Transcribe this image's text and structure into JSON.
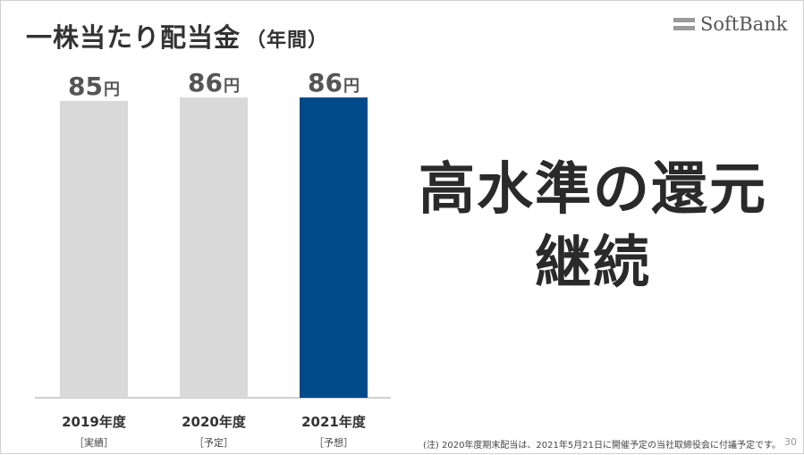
{
  "title": {
    "main": "一株当たり配当金",
    "paren": "（年間）"
  },
  "brand": {
    "name": "SoftBank",
    "mark_color": "#9a9a9a"
  },
  "message": {
    "line1": "高水準の還元",
    "line2": "継続"
  },
  "footnote": "(注) 2020年度期末配当は、2021年5月21日に開催予定の当社取締役会に付議予定です。",
  "page_number": "30",
  "chart_data": {
    "type": "bar",
    "categories": [
      "2019年度",
      "2020年度",
      "2021年度"
    ],
    "sublabels": [
      "［実績］",
      "［予定］",
      "［予想］"
    ],
    "values": [
      85,
      86,
      86
    ],
    "value_labels": [
      "85",
      "86",
      "86"
    ],
    "unit": "円",
    "ylim": [
      0,
      86
    ],
    "colors": [
      "#d9d9d9",
      "#d9d9d9",
      "#004a8a"
    ],
    "grid": false,
    "legend": "none"
  }
}
